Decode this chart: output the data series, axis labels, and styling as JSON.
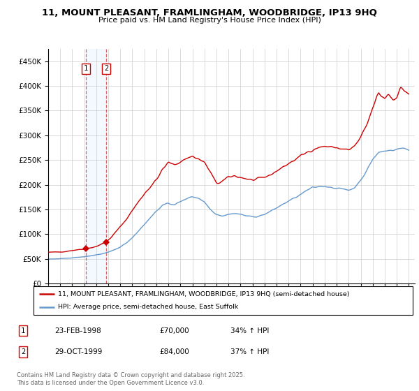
{
  "title": "11, MOUNT PLEASANT, FRAMLINGHAM, WOODBRIDGE, IP13 9HQ",
  "subtitle": "Price paid vs. HM Land Registry's House Price Index (HPI)",
  "ylim": [
    0,
    475000
  ],
  "yticks": [
    0,
    50000,
    100000,
    150000,
    200000,
    250000,
    300000,
    350000,
    400000,
    450000
  ],
  "xlim_start": 1995.0,
  "xlim_end": 2025.5,
  "sale_dates": [
    1998.15,
    1999.83
  ],
  "sale_prices": [
    70000,
    84000
  ],
  "sale_labels": [
    "1",
    "2"
  ],
  "legend_line1": "11, MOUNT PLEASANT, FRAMLINGHAM, WOODBRIDGE, IP13 9HQ (semi-detached house)",
  "legend_line2": "HPI: Average price, semi-detached house, East Suffolk",
  "table_rows": [
    [
      "1",
      "23-FEB-1998",
      "£70,000",
      "34% ↑ HPI"
    ],
    [
      "2",
      "29-OCT-1999",
      "£84,000",
      "37% ↑ HPI"
    ]
  ],
  "footnote": "Contains HM Land Registry data © Crown copyright and database right 2025.\nThis data is licensed under the Open Government Licence v3.0.",
  "line_color_red": "#cc0000",
  "line_color_blue": "#6699cc",
  "grid_color": "#cccccc",
  "highlight_color": "#ddeeff"
}
